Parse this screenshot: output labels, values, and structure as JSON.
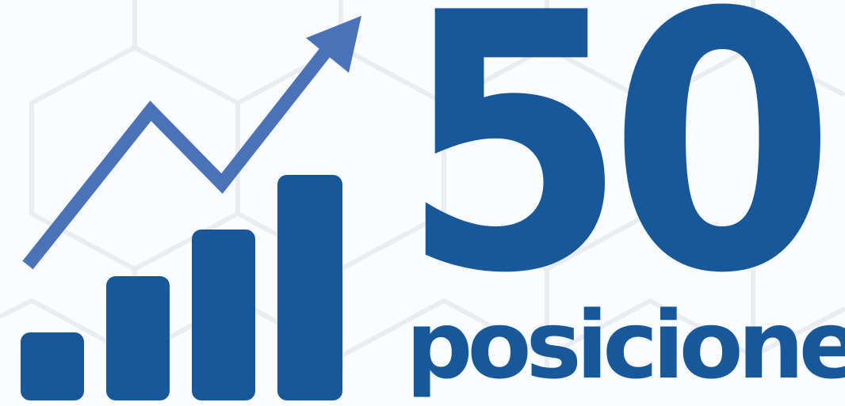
{
  "headline": {
    "number": "50",
    "caption": "posiciones"
  },
  "graphic": {
    "icon": "growth-chart-with-trend-arrow"
  },
  "colors": {
    "brand": "#17589b",
    "arrow": "#4a72b8",
    "pattern": "#e9edf1"
  }
}
